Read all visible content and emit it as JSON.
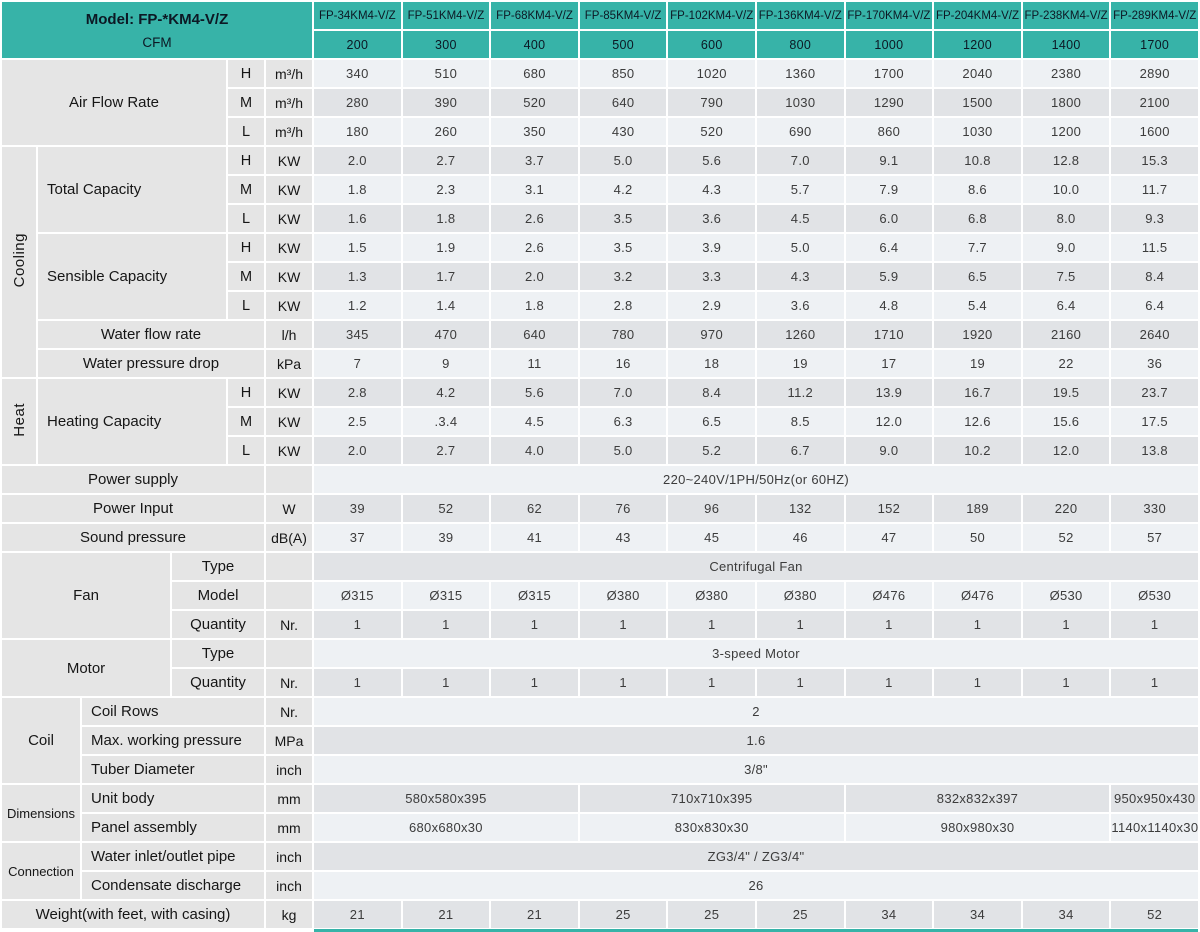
{
  "colors": {
    "teal": "#37b3a8",
    "header_text": "#0c1824",
    "label_bg": "#e5e5e5",
    "label_text": "#161616",
    "row_light": "#eef1f4",
    "row_dark": "#e1e3e6",
    "value_text": "#3c3c3c"
  },
  "header": {
    "model_title": "Model: FP-*KM4-V/Z",
    "cfm_label": "CFM",
    "models": [
      "FP-34KM4-V/Z",
      "FP-51KM4-V/Z",
      "FP-68KM4-V/Z",
      "FP-85KM4-V/Z",
      "FP-102KM4-V/Z",
      "FP-136KM4-V/Z",
      "FP-170KM4-V/Z",
      "FP-204KM4-V/Z",
      "FP-238KM4-V/Z",
      "FP-289KM4-V/Z"
    ],
    "cfm_values": [
      "200",
      "300",
      "400",
      "500",
      "600",
      "800",
      "1000",
      "1200",
      "1400",
      "1700"
    ]
  },
  "labels": {
    "air_flow_rate": "Air Flow Rate",
    "cooling": "Cooling",
    "heat": "Heat",
    "total_capacity": "Total Capacity",
    "sensible_capacity": "Sensible Capacity",
    "water_flow_rate": "Water flow rate",
    "water_pressure_drop": "Water pressure drop",
    "heating_capacity": "Heating Capacity",
    "power_supply": "Power supply",
    "power_input": "Power Input",
    "sound_pressure": "Sound pressure",
    "fan": "Fan",
    "motor": "Motor",
    "coil": "Coil",
    "dimensions": "Dimensions",
    "connection": "Connection",
    "type": "Type",
    "model": "Model",
    "quantity": "Quantity",
    "coil_rows": "Coil Rows",
    "max_working_pressure": "Max. working pressure",
    "tuber_diameter": "Tuber Diameter",
    "unit_body": "Unit body",
    "panel_assembly": "Panel assembly",
    "water_inlet_outlet_pipe": "Water inlet/outlet pipe",
    "condensate_discharge": "Condensate discharge",
    "weight": "Weight(with feet, with casing)",
    "h": "H",
    "m": "M",
    "l": "L"
  },
  "units": {
    "m3h": "m³/h",
    "kw": "KW",
    "lh": "l/h",
    "kpa": "kPa",
    "w": "W",
    "dba": "dB(A)",
    "nr": "Nr.",
    "mpa": "MPa",
    "inch": "inch",
    "mm": "mm",
    "kg": "kg"
  },
  "rows": {
    "air_flow_h": [
      "340",
      "510",
      "680",
      "850",
      "1020",
      "1360",
      "1700",
      "2040",
      "2380",
      "2890"
    ],
    "air_flow_m": [
      "280",
      "390",
      "520",
      "640",
      "790",
      "1030",
      "1290",
      "1500",
      "1800",
      "2100"
    ],
    "air_flow_l": [
      "180",
      "260",
      "350",
      "430",
      "520",
      "690",
      "860",
      "1030",
      "1200",
      "1600"
    ],
    "total_capacity_h": [
      "2.0",
      "2.7",
      "3.7",
      "5.0",
      "5.6",
      "7.0",
      "9.1",
      "10.8",
      "12.8",
      "15.3"
    ],
    "total_capacity_m": [
      "1.8",
      "2.3",
      "3.1",
      "4.2",
      "4.3",
      "5.7",
      "7.9",
      "8.6",
      "10.0",
      "11.7"
    ],
    "total_capacity_l": [
      "1.6",
      "1.8",
      "2.6",
      "3.5",
      "3.6",
      "4.5",
      "6.0",
      "6.8",
      "8.0",
      "9.3"
    ],
    "sensible_capacity_h": [
      "1.5",
      "1.9",
      "2.6",
      "3.5",
      "3.9",
      "5.0",
      "6.4",
      "7.7",
      "9.0",
      "11.5"
    ],
    "sensible_capacity_m": [
      "1.3",
      "1.7",
      "2.0",
      "3.2",
      "3.3",
      "4.3",
      "5.9",
      "6.5",
      "7.5",
      "8.4"
    ],
    "sensible_capacity_l": [
      "1.2",
      "1.4",
      "1.8",
      "2.8",
      "2.9",
      "3.6",
      "4.8",
      "5.4",
      "6.4",
      "6.4"
    ],
    "water_flow_rate": [
      "345",
      "470",
      "640",
      "780",
      "970",
      "1260",
      "1710",
      "1920",
      "2160",
      "2640"
    ],
    "water_pressure_drop": [
      "7",
      "9",
      "11",
      "16",
      "18",
      "19",
      "17",
      "19",
      "22",
      "36"
    ],
    "heating_capacity_h": [
      "2.8",
      "4.2",
      "5.6",
      "7.0",
      "8.4",
      "11.2",
      "13.9",
      "16.7",
      "19.5",
      "23.7"
    ],
    "heating_capacity_m": [
      "2.5",
      ".3.4",
      "4.5",
      "6.3",
      "6.5",
      "8.5",
      "12.0",
      "12.6",
      "15.6",
      "17.5"
    ],
    "heating_capacity_l": [
      "2.0",
      "2.7",
      "4.0",
      "5.0",
      "5.2",
      "6.7",
      "9.0",
      "10.2",
      "12.0",
      "13.8"
    ],
    "power_supply_value": "220~240V/1PH/50Hz(or 60HZ)",
    "power_input": [
      "39",
      "52",
      "62",
      "76",
      "96",
      "132",
      "152",
      "189",
      "220",
      "330"
    ],
    "sound_pressure": [
      "37",
      "39",
      "41",
      "43",
      "45",
      "46",
      "47",
      "50",
      "52",
      "57"
    ],
    "fan_type_value": "Centrifugal Fan",
    "fan_model": [
      "Ø315",
      "Ø315",
      "Ø315",
      "Ø380",
      "Ø380",
      "Ø380",
      "Ø476",
      "Ø476",
      "Ø530",
      "Ø530"
    ],
    "fan_quantity": [
      "1",
      "1",
      "1",
      "1",
      "1",
      "1",
      "1",
      "1",
      "1",
      "1"
    ],
    "motor_type_value": "3-speed Motor",
    "motor_quantity": [
      "1",
      "1",
      "1",
      "1",
      "1",
      "1",
      "1",
      "1",
      "1",
      "1"
    ],
    "coil_rows_value": "2",
    "max_working_pressure_value": "1.6",
    "tuber_diameter_value": "3/8\"",
    "unit_body": [
      "580x580x395",
      "710x710x395",
      "832x832x397",
      "950x950x430"
    ],
    "panel_assembly": [
      "680x680x30",
      "830x830x30",
      "980x980x30",
      "1140x1140x30"
    ],
    "water_pipe_value": "ZG3/4\" / ZG3/4\"",
    "condensate_value": "26",
    "weight": [
      "21",
      "21",
      "21",
      "25",
      "25",
      "25",
      "34",
      "34",
      "34",
      "52"
    ]
  }
}
